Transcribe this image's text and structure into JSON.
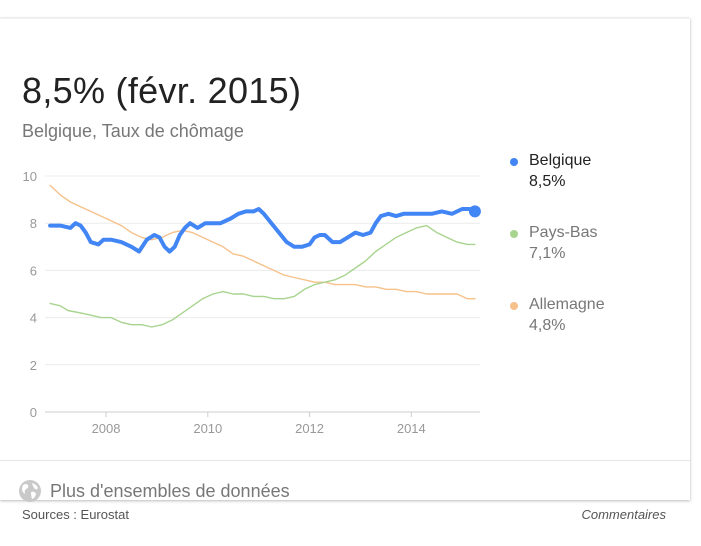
{
  "header": {
    "headline": "8,5% (févr. 2015)",
    "subtitle": "Belgique, Taux de chômage"
  },
  "legend": [
    {
      "name": "Belgique",
      "value": "8,5%",
      "color": "#4285f4"
    },
    {
      "name": "Pays-Bas",
      "value": "7,1%",
      "color": "#a8d48f"
    },
    {
      "name": "Allemagne",
      "value": "4,8%",
      "color": "#f6c18b"
    }
  ],
  "footer": {
    "more_label": "Plus d'ensembles de données",
    "sources": "Sources : Eurostat",
    "comments": "Commentaires"
  },
  "chart_data": {
    "type": "line",
    "title": "",
    "xlabel": "",
    "ylabel": "",
    "xlim": [
      2006.8,
      2015.35
    ],
    "ylim": [
      0,
      10
    ],
    "x_ticks": [
      2008,
      2010,
      2012,
      2014
    ],
    "x_tick_labels": [
      "2008",
      "2010",
      "2012",
      "2014"
    ],
    "y_ticks": [
      0,
      2,
      4,
      6,
      8,
      10
    ],
    "y_tick_labels": [
      "0",
      "2",
      "4",
      "6",
      "8",
      "10"
    ],
    "grid": true,
    "series": [
      {
        "name": "Belgique",
        "color": "#4285f4",
        "points": [
          [
            2006.9,
            7.9
          ],
          [
            2007.1,
            7.9
          ],
          [
            2007.3,
            7.8
          ],
          [
            2007.4,
            8.0
          ],
          [
            2007.5,
            7.9
          ],
          [
            2007.6,
            7.6
          ],
          [
            2007.7,
            7.2
          ],
          [
            2007.85,
            7.1
          ],
          [
            2007.95,
            7.3
          ],
          [
            2008.1,
            7.3
          ],
          [
            2008.3,
            7.2
          ],
          [
            2008.5,
            7.0
          ],
          [
            2008.65,
            6.8
          ],
          [
            2008.8,
            7.3
          ],
          [
            2008.95,
            7.5
          ],
          [
            2009.05,
            7.4
          ],
          [
            2009.15,
            7.0
          ],
          [
            2009.25,
            6.8
          ],
          [
            2009.35,
            7.0
          ],
          [
            2009.45,
            7.5
          ],
          [
            2009.55,
            7.8
          ],
          [
            2009.65,
            8.0
          ],
          [
            2009.8,
            7.8
          ],
          [
            2009.95,
            8.0
          ],
          [
            2010.1,
            8.0
          ],
          [
            2010.25,
            8.0
          ],
          [
            2010.45,
            8.2
          ],
          [
            2010.6,
            8.4
          ],
          [
            2010.75,
            8.5
          ],
          [
            2010.9,
            8.5
          ],
          [
            2011.0,
            8.6
          ],
          [
            2011.1,
            8.4
          ],
          [
            2011.25,
            8.0
          ],
          [
            2011.4,
            7.6
          ],
          [
            2011.55,
            7.2
          ],
          [
            2011.7,
            7.0
          ],
          [
            2011.85,
            7.0
          ],
          [
            2012.0,
            7.1
          ],
          [
            2012.1,
            7.4
          ],
          [
            2012.2,
            7.5
          ],
          [
            2012.3,
            7.5
          ],
          [
            2012.45,
            7.2
          ],
          [
            2012.6,
            7.2
          ],
          [
            2012.75,
            7.4
          ],
          [
            2012.9,
            7.6
          ],
          [
            2013.05,
            7.5
          ],
          [
            2013.2,
            7.6
          ],
          [
            2013.3,
            8.0
          ],
          [
            2013.4,
            8.3
          ],
          [
            2013.55,
            8.4
          ],
          [
            2013.7,
            8.3
          ],
          [
            2013.85,
            8.4
          ],
          [
            2014.0,
            8.4
          ],
          [
            2014.2,
            8.4
          ],
          [
            2014.4,
            8.4
          ],
          [
            2014.6,
            8.5
          ],
          [
            2014.8,
            8.4
          ],
          [
            2015.0,
            8.6
          ],
          [
            2015.15,
            8.6
          ],
          [
            2015.25,
            8.5
          ]
        ]
      },
      {
        "name": "Pays-Bas",
        "color": "#a8d48f",
        "points": [
          [
            2006.9,
            4.6
          ],
          [
            2007.1,
            4.5
          ],
          [
            2007.25,
            4.3
          ],
          [
            2007.5,
            4.2
          ],
          [
            2007.7,
            4.1
          ],
          [
            2007.9,
            4.0
          ],
          [
            2008.1,
            4.0
          ],
          [
            2008.3,
            3.8
          ],
          [
            2008.5,
            3.7
          ],
          [
            2008.7,
            3.7
          ],
          [
            2008.9,
            3.6
          ],
          [
            2009.1,
            3.7
          ],
          [
            2009.3,
            3.9
          ],
          [
            2009.5,
            4.2
          ],
          [
            2009.7,
            4.5
          ],
          [
            2009.9,
            4.8
          ],
          [
            2010.1,
            5.0
          ],
          [
            2010.3,
            5.1
          ],
          [
            2010.5,
            5.0
          ],
          [
            2010.7,
            5.0
          ],
          [
            2010.9,
            4.9
          ],
          [
            2011.1,
            4.9
          ],
          [
            2011.3,
            4.8
          ],
          [
            2011.5,
            4.8
          ],
          [
            2011.7,
            4.9
          ],
          [
            2011.9,
            5.2
          ],
          [
            2012.1,
            5.4
          ],
          [
            2012.3,
            5.5
          ],
          [
            2012.5,
            5.6
          ],
          [
            2012.7,
            5.8
          ],
          [
            2012.9,
            6.1
          ],
          [
            2013.1,
            6.4
          ],
          [
            2013.3,
            6.8
          ],
          [
            2013.5,
            7.1
          ],
          [
            2013.7,
            7.4
          ],
          [
            2013.9,
            7.6
          ],
          [
            2014.1,
            7.8
          ],
          [
            2014.3,
            7.9
          ],
          [
            2014.5,
            7.6
          ],
          [
            2014.7,
            7.4
          ],
          [
            2014.9,
            7.2
          ],
          [
            2015.1,
            7.1
          ],
          [
            2015.25,
            7.1
          ]
        ]
      },
      {
        "name": "Allemagne",
        "color": "#f6c18b",
        "points": [
          [
            2006.9,
            9.6
          ],
          [
            2007.1,
            9.2
          ],
          [
            2007.3,
            8.9
          ],
          [
            2007.5,
            8.7
          ],
          [
            2007.7,
            8.5
          ],
          [
            2007.9,
            8.3
          ],
          [
            2008.1,
            8.1
          ],
          [
            2008.3,
            7.9
          ],
          [
            2008.5,
            7.6
          ],
          [
            2008.7,
            7.4
          ],
          [
            2008.9,
            7.3
          ],
          [
            2009.1,
            7.4
          ],
          [
            2009.3,
            7.6
          ],
          [
            2009.5,
            7.7
          ],
          [
            2009.7,
            7.6
          ],
          [
            2009.9,
            7.4
          ],
          [
            2010.1,
            7.2
          ],
          [
            2010.3,
            7.0
          ],
          [
            2010.5,
            6.7
          ],
          [
            2010.7,
            6.6
          ],
          [
            2010.9,
            6.4
          ],
          [
            2011.1,
            6.2
          ],
          [
            2011.3,
            6.0
          ],
          [
            2011.5,
            5.8
          ],
          [
            2011.7,
            5.7
          ],
          [
            2011.9,
            5.6
          ],
          [
            2012.1,
            5.5
          ],
          [
            2012.3,
            5.5
          ],
          [
            2012.5,
            5.4
          ],
          [
            2012.7,
            5.4
          ],
          [
            2012.9,
            5.4
          ],
          [
            2013.1,
            5.3
          ],
          [
            2013.3,
            5.3
          ],
          [
            2013.5,
            5.2
          ],
          [
            2013.7,
            5.2
          ],
          [
            2013.9,
            5.1
          ],
          [
            2014.1,
            5.1
          ],
          [
            2014.3,
            5.0
          ],
          [
            2014.5,
            5.0
          ],
          [
            2014.7,
            5.0
          ],
          [
            2014.9,
            5.0
          ],
          [
            2015.1,
            4.8
          ],
          [
            2015.25,
            4.8
          ]
        ]
      }
    ]
  }
}
